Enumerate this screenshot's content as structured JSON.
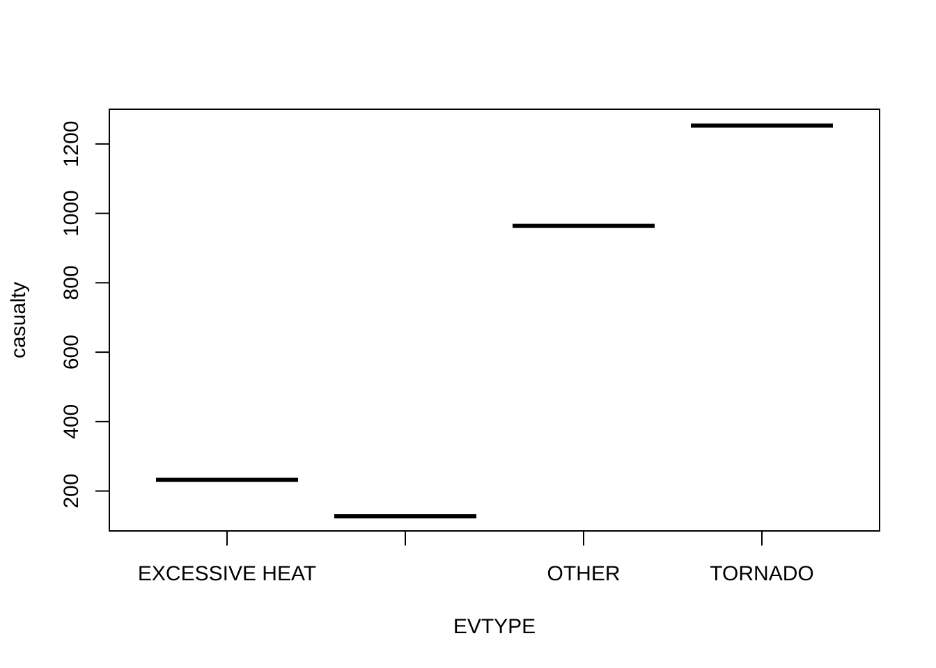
{
  "chart_data": {
    "type": "box",
    "xlabel": "EVTYPE",
    "ylabel": "casualty",
    "categories": [
      "EXCESSIVE HEAT",
      "",
      "OTHER",
      "TORNADO"
    ],
    "values": [
      232,
      127,
      964,
      1253
    ],
    "yticks": [
      200,
      400,
      600,
      800,
      1000,
      1200
    ],
    "ylim": [
      85,
      1300
    ],
    "grid": false,
    "legend": "none"
  }
}
